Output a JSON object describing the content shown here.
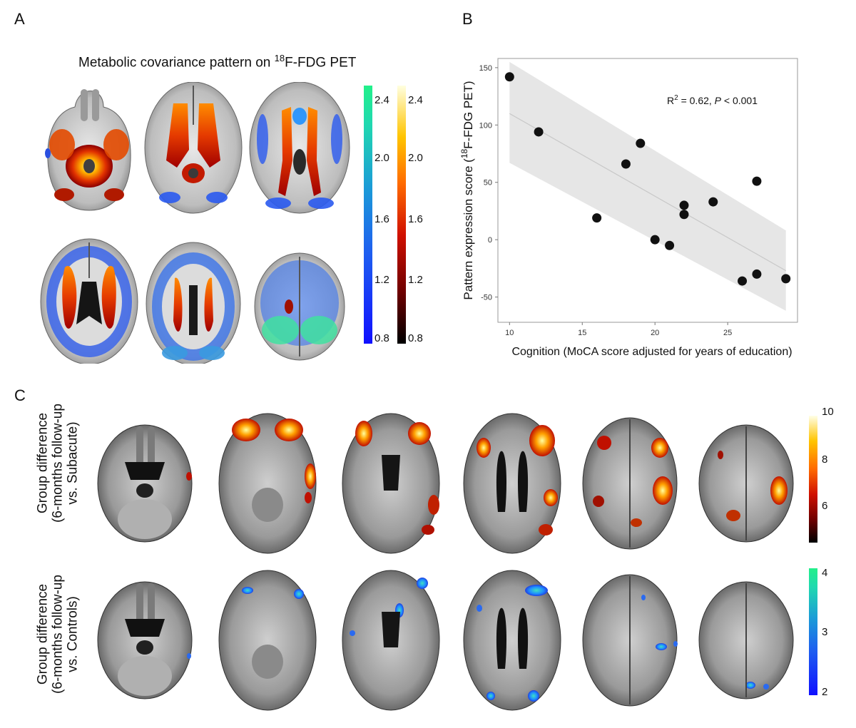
{
  "panels": {
    "a": "A",
    "b": "B",
    "c": "C"
  },
  "panel_a": {
    "title_pre": "Metabolic covariance pattern on ",
    "title_sup": "18",
    "title_post": "F-FDG PET",
    "cbar_cool_ticks": [
      "2.4",
      "2.0",
      "1.6",
      "1.2",
      "0.8"
    ],
    "cbar_hot_ticks": [
      "2.4",
      "2.0",
      "1.6",
      "1.2",
      "0.8"
    ]
  },
  "panel_c": {
    "row1_label_line1": "Group difference",
    "row1_label_line2": "(6-months follow-up",
    "row1_label_line3": "vs. Subacute)",
    "row2_label_line1": "Group difference",
    "row2_label_line2": "(6-months follow-up",
    "row2_label_line3": "vs. Controls)",
    "cbar_hot_ticks": [
      "10",
      "8",
      "6"
    ],
    "cbar_cool_ticks": [
      "4",
      "3",
      "2"
    ]
  },
  "chart_data": {
    "type": "scatter",
    "x": [
      10,
      12,
      16,
      18,
      19,
      20,
      21,
      22,
      22,
      24,
      26,
      27,
      27,
      29
    ],
    "y": [
      142,
      94,
      19,
      66,
      84,
      0,
      -5,
      30,
      22,
      33,
      -36,
      51,
      -30,
      -34
    ],
    "fit_line": {
      "x": [
        10,
        29
      ],
      "y": [
        110,
        -27
      ]
    },
    "ci_band": {
      "x": [
        10,
        29
      ],
      "upper": [
        155,
        8
      ],
      "lower": [
        67,
        -62
      ]
    },
    "xlabel": "Cognition (MoCA score adjusted for years of education)",
    "ylabel_pre": "Pattern expression score (",
    "ylabel_sup": "18",
    "ylabel_post": "F-FDG PET)",
    "annotation": {
      "r2_label": "R",
      "r2_sup": "2",
      "r2_value": " = 0.62, ",
      "p_label": "P",
      "p_value": " < 0.001"
    },
    "xlim": [
      9.2,
      29.8
    ],
    "ylim": [
      -72,
      158
    ],
    "xticks": [
      10,
      15,
      20,
      25
    ],
    "yticks": [
      150,
      100,
      50,
      0,
      -50
    ],
    "grid": false,
    "colors": {
      "points": "#111111",
      "band": "#e6e6e6",
      "line": "#c8c8c8"
    }
  }
}
